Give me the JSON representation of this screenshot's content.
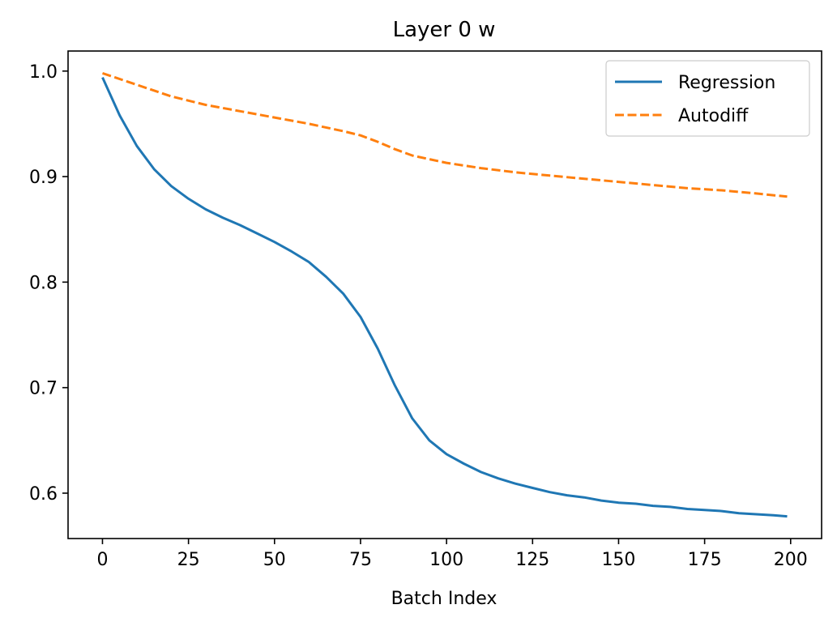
{
  "chart_data": {
    "type": "line",
    "title": "Layer 0 w",
    "xlabel": "Batch Index",
    "ylabel": "",
    "xlim": [
      -10,
      209
    ],
    "ylim": [
      0.557,
      1.019
    ],
    "xticks": [
      0,
      25,
      50,
      75,
      100,
      125,
      150,
      175,
      200
    ],
    "yticks": [
      0.6,
      0.7,
      0.8,
      0.9,
      1.0
    ],
    "ytick_labels": [
      "0.6",
      "0.7",
      "0.8",
      "0.9",
      "1.0"
    ],
    "grid": false,
    "legend_position": "top-right",
    "series": [
      {
        "name": "Regression",
        "color": "#1f77b4",
        "style": "solid",
        "x": [
          0,
          5,
          10,
          15,
          20,
          25,
          30,
          35,
          40,
          45,
          50,
          55,
          60,
          65,
          70,
          75,
          80,
          85,
          90,
          95,
          100,
          105,
          110,
          115,
          120,
          125,
          130,
          135,
          140,
          145,
          150,
          155,
          160,
          165,
          170,
          175,
          180,
          185,
          190,
          195,
          199
        ],
        "y": [
          0.994,
          0.958,
          0.929,
          0.907,
          0.891,
          0.879,
          0.869,
          0.861,
          0.854,
          0.846,
          0.838,
          0.829,
          0.819,
          0.805,
          0.789,
          0.767,
          0.737,
          0.702,
          0.671,
          0.65,
          0.637,
          0.628,
          0.62,
          0.614,
          0.609,
          0.605,
          0.601,
          0.598,
          0.596,
          0.593,
          0.591,
          0.59,
          0.588,
          0.587,
          0.585,
          0.584,
          0.583,
          0.581,
          0.58,
          0.579,
          0.578
        ]
      },
      {
        "name": "Autodiff",
        "color": "#ff7f0e",
        "style": "dashed",
        "x": [
          0,
          10,
          20,
          30,
          40,
          50,
          60,
          70,
          75,
          80,
          85,
          90,
          100,
          110,
          120,
          130,
          140,
          150,
          160,
          170,
          180,
          190,
          199
        ],
        "y": [
          0.998,
          0.987,
          0.976,
          0.968,
          0.962,
          0.956,
          0.95,
          0.943,
          0.939,
          0.933,
          0.926,
          0.92,
          0.913,
          0.908,
          0.904,
          0.901,
          0.898,
          0.895,
          0.892,
          0.889,
          0.887,
          0.884,
          0.881
        ]
      }
    ]
  }
}
